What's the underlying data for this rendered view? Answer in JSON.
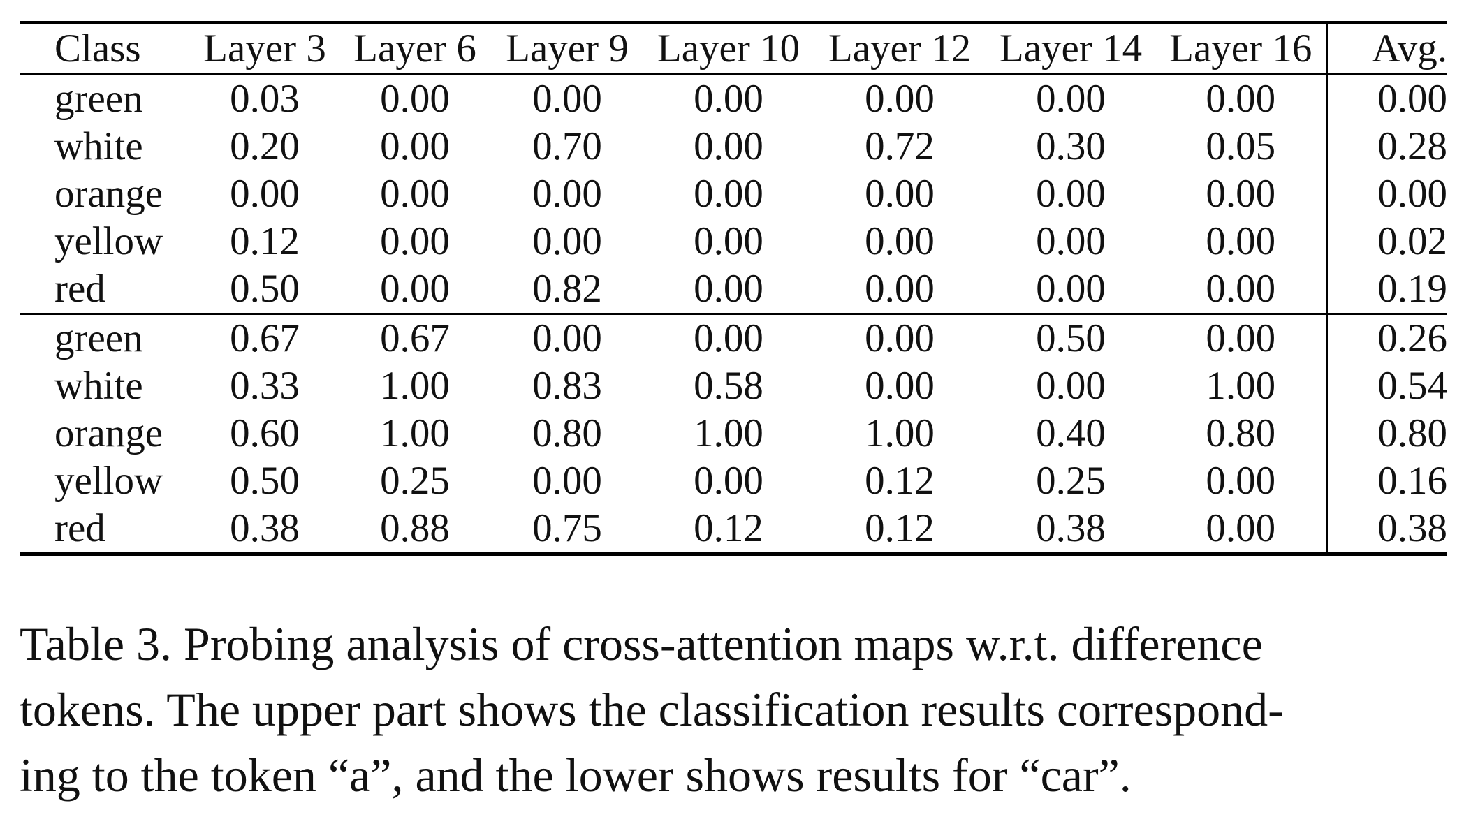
{
  "table": {
    "headers": [
      "Class",
      "Layer 3",
      "Layer 6",
      "Layer 9",
      "Layer 10",
      "Layer 12",
      "Layer 14",
      "Layer 16",
      "Avg."
    ],
    "upper_rows": [
      [
        "green",
        "0.03",
        "0.00",
        "0.00",
        "0.00",
        "0.00",
        "0.00",
        "0.00",
        "0.00"
      ],
      [
        "white",
        "0.20",
        "0.00",
        "0.70",
        "0.00",
        "0.72",
        "0.30",
        "0.05",
        "0.28"
      ],
      [
        "orange",
        "0.00",
        "0.00",
        "0.00",
        "0.00",
        "0.00",
        "0.00",
        "0.00",
        "0.00"
      ],
      [
        "yellow",
        "0.12",
        "0.00",
        "0.00",
        "0.00",
        "0.00",
        "0.00",
        "0.00",
        "0.02"
      ],
      [
        "red",
        "0.50",
        "0.00",
        "0.82",
        "0.00",
        "0.00",
        "0.00",
        "0.00",
        "0.19"
      ]
    ],
    "lower_rows": [
      [
        "green",
        "0.67",
        "0.67",
        "0.00",
        "0.00",
        "0.00",
        "0.50",
        "0.00",
        "0.26"
      ],
      [
        "white",
        "0.33",
        "1.00",
        "0.83",
        "0.58",
        "0.00",
        "0.00",
        "1.00",
        "0.54"
      ],
      [
        "orange",
        "0.60",
        "1.00",
        "0.80",
        "1.00",
        "1.00",
        "0.40",
        "0.80",
        "0.80"
      ],
      [
        "yellow",
        "0.50",
        "0.25",
        "0.00",
        "0.00",
        "0.12",
        "0.25",
        "0.00",
        "0.16"
      ],
      [
        "red",
        "0.38",
        "0.88",
        "0.75",
        "0.12",
        "0.12",
        "0.38",
        "0.00",
        "0.38"
      ]
    ]
  },
  "caption": {
    "lines": [
      "Table 3. Probing analysis of cross-attention maps w.r.t. difference",
      "tokens. The upper part shows the classification results correspond-",
      "ing to the token “a”, and the lower shows results for “car”."
    ]
  }
}
